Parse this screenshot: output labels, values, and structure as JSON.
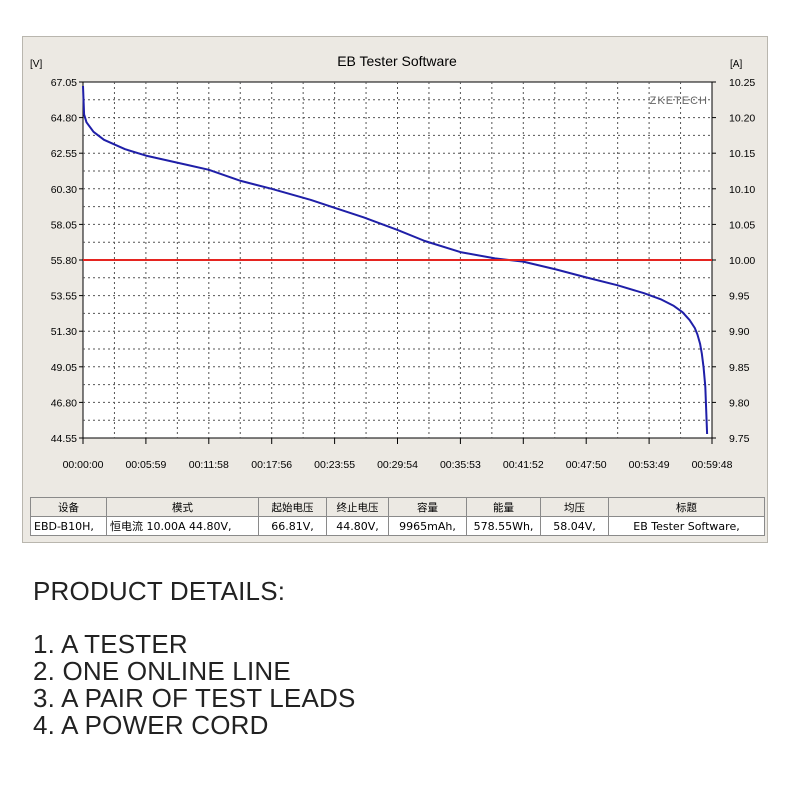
{
  "chart_data": {
    "type": "line",
    "title": "EB Tester Software",
    "watermark": "ZKETECH",
    "y_left_unit": "[V]",
    "y_right_unit": "[A]",
    "y_left_range": [
      44.55,
      67.05
    ],
    "y_right_range": [
      9.75,
      10.25
    ],
    "y_left_ticks": [
      "67.05",
      "64.80",
      "62.55",
      "60.30",
      "58.05",
      "55.80",
      "53.55",
      "51.30",
      "49.05",
      "46.80",
      "44.55"
    ],
    "y_right_ticks": [
      "10.25",
      "10.20",
      "10.15",
      "10.10",
      "10.05",
      "10.00",
      "9.95",
      "9.90",
      "9.85",
      "9.80",
      "9.75"
    ],
    "x_range_seconds": [
      0,
      3588
    ],
    "x_ticks": [
      "00:00:00",
      "00:05:59",
      "00:11:58",
      "00:17:56",
      "00:23:55",
      "00:29:54",
      "00:35:53",
      "00:41:52",
      "00:47:50",
      "00:53:49",
      "00:59:48"
    ],
    "grid": true,
    "series": [
      {
        "axis": "left",
        "color": "#1f1fa8",
        "x_seconds": [
          0,
          6,
          20,
          60,
          120,
          240,
          359,
          600,
          718,
          900,
          1076,
          1300,
          1435,
          1600,
          1794,
          1950,
          2153,
          2350,
          2511,
          2700,
          2870,
          3050,
          3200,
          3300,
          3370,
          3420,
          3460,
          3490,
          3505,
          3520,
          3530,
          3540,
          3550,
          3560
        ],
        "values": [
          66.8,
          65.0,
          64.5,
          63.9,
          63.4,
          62.8,
          62.4,
          61.8,
          61.5,
          60.8,
          60.3,
          59.6,
          59.1,
          58.5,
          57.7,
          57.0,
          56.3,
          55.9,
          55.7,
          55.2,
          54.7,
          54.2,
          53.7,
          53.3,
          52.9,
          52.5,
          52.0,
          51.5,
          51.1,
          50.5,
          49.9,
          49.0,
          47.8,
          44.8
        ]
      },
      {
        "axis": "right",
        "color": "#e52420",
        "x_seconds": [
          0,
          3588
        ],
        "values": [
          10.0,
          10.0
        ]
      }
    ]
  },
  "table": {
    "headers": [
      "设备",
      "模式",
      "起始电压",
      "终止电压",
      "容量",
      "能量",
      "均压",
      "标题"
    ],
    "row": [
      "EBD-B10H,",
      "恒电流  10.00A  44.80V,",
      "66.81V,",
      "44.80V,",
      "9965mAh,",
      "578.55Wh,",
      "58.04V,",
      "EB Tester Software,"
    ]
  },
  "details": {
    "heading": "PRODUCT DETAILS:",
    "items": [
      "1. A TESTER",
      "2. ONE ONLINE LINE",
      "3. A PAIR OF TEST LEADS",
      "4. A POWER CORD"
    ]
  }
}
